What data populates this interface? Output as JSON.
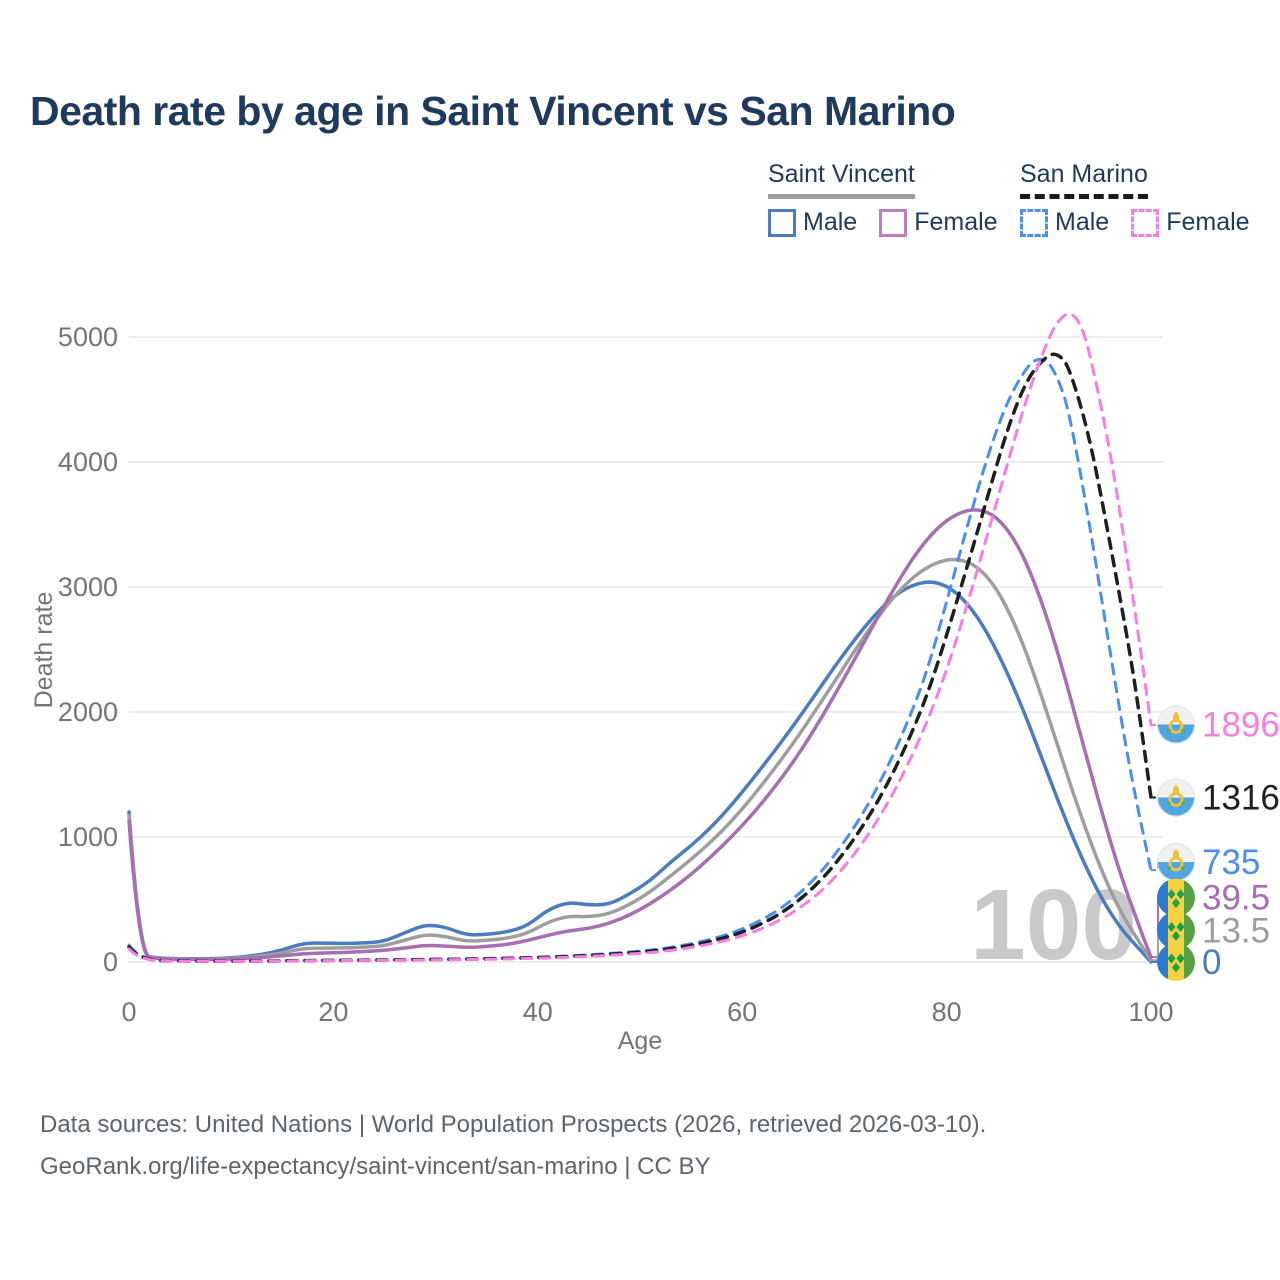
{
  "title": "Death rate by age in Saint Vincent vs San Marino",
  "watermark": "100",
  "legend": {
    "groups": [
      {
        "name": "Saint Vincent",
        "underline_style": "solid",
        "underline_color": "#9e9e9e",
        "items": [
          {
            "label": "Male",
            "color": "#4a7cc2",
            "dashed": false
          },
          {
            "label": "Female",
            "color": "#bb7ec0",
            "dashed": false
          }
        ]
      },
      {
        "name": "San Marino",
        "underline_style": "dashed",
        "underline_color": "#1a1a1a",
        "items": [
          {
            "label": "Male",
            "color": "#4a8df5",
            "dashed": true
          },
          {
            "label": "Female",
            "color": "#f97ce5",
            "dashed": true
          }
        ]
      }
    ]
  },
  "footer": {
    "line1": "Data sources: United Nations | World Population Prospects (2026, retrieved 2026-03-10).",
    "line2": "GeoRank.org/life-expectancy/saint-vincent/san-marino | CC BY"
  },
  "chart_data": {
    "type": "line",
    "title": "Death rate by age in Saint Vincent vs San Marino",
    "xlabel": "Age",
    "ylabel": "Death rate",
    "xlim": [
      0,
      100
    ],
    "ylim": [
      0,
      5200
    ],
    "xticks": [
      0,
      20,
      40,
      60,
      80,
      100
    ],
    "yticks": [
      0,
      1000,
      2000,
      3000,
      4000,
      5000
    ],
    "grid": "horizontal",
    "legend_position": "top-right",
    "axis_color": "#757575",
    "grid_color": "#e8e8e8",
    "watermark_color": "#c9c9c9",
    "series": [
      {
        "name": "Saint Vincent Male",
        "color": "#4a7cc2",
        "dash": false,
        "width": 3.5,
        "end_label": {
          "text": "0",
          "value": 0,
          "label_value": 0,
          "flag": "sv"
        },
        "points": [
          [
            0,
            1200
          ],
          [
            1,
            55
          ],
          [
            3,
            30
          ],
          [
            6,
            25
          ],
          [
            10,
            30
          ],
          [
            13,
            60
          ],
          [
            15,
            95
          ],
          [
            17,
            150
          ],
          [
            19,
            152
          ],
          [
            21,
            148
          ],
          [
            23,
            152
          ],
          [
            25,
            165
          ],
          [
            27,
            235
          ],
          [
            29,
            300
          ],
          [
            31,
            280
          ],
          [
            33,
            215
          ],
          [
            35,
            220
          ],
          [
            37,
            240
          ],
          [
            39,
            290
          ],
          [
            41,
            420
          ],
          [
            43,
            480
          ],
          [
            45,
            455
          ],
          [
            47,
            460
          ],
          [
            49,
            545
          ],
          [
            51,
            650
          ],
          [
            53,
            800
          ],
          [
            55,
            930
          ],
          [
            57,
            1080
          ],
          [
            59,
            1260
          ],
          [
            61,
            1460
          ],
          [
            63,
            1670
          ],
          [
            65,
            1890
          ],
          [
            67,
            2120
          ],
          [
            69,
            2360
          ],
          [
            71,
            2580
          ],
          [
            73,
            2780
          ],
          [
            75,
            2940
          ],
          [
            77,
            3030
          ],
          [
            79,
            3045
          ],
          [
            81,
            2960
          ],
          [
            83,
            2770
          ],
          [
            85,
            2480
          ],
          [
            87,
            2120
          ],
          [
            89,
            1700
          ],
          [
            91,
            1270
          ],
          [
            93,
            870
          ],
          [
            95,
            530
          ],
          [
            97,
            270
          ],
          [
            99,
            90
          ],
          [
            100,
            0
          ]
        ]
      },
      {
        "name": "Saint Vincent Both sexes",
        "color": "#9e9e9e",
        "dash": false,
        "width": 3.5,
        "end_label": {
          "text": "13.5",
          "value": 13.5,
          "label_value": 252,
          "flag": "sv"
        },
        "points": [
          [
            0,
            1170
          ],
          [
            1,
            50
          ],
          [
            3,
            27
          ],
          [
            6,
            22
          ],
          [
            10,
            26
          ],
          [
            13,
            48
          ],
          [
            15,
            72
          ],
          [
            17,
            108
          ],
          [
            19,
            112
          ],
          [
            21,
            112
          ],
          [
            23,
            118
          ],
          [
            25,
            130
          ],
          [
            27,
            175
          ],
          [
            29,
            220
          ],
          [
            31,
            205
          ],
          [
            33,
            165
          ],
          [
            35,
            172
          ],
          [
            37,
            190
          ],
          [
            39,
            230
          ],
          [
            41,
            320
          ],
          [
            43,
            368
          ],
          [
            45,
            360
          ],
          [
            47,
            385
          ],
          [
            49,
            460
          ],
          [
            51,
            560
          ],
          [
            53,
            690
          ],
          [
            55,
            820
          ],
          [
            57,
            965
          ],
          [
            59,
            1130
          ],
          [
            61,
            1320
          ],
          [
            63,
            1530
          ],
          [
            65,
            1750
          ],
          [
            67,
            1990
          ],
          [
            69,
            2240
          ],
          [
            71,
            2490
          ],
          [
            73,
            2730
          ],
          [
            75,
            2940
          ],
          [
            77,
            3100
          ],
          [
            79,
            3200
          ],
          [
            81,
            3230
          ],
          [
            83,
            3170
          ],
          [
            85,
            2980
          ],
          [
            87,
            2650
          ],
          [
            89,
            2200
          ],
          [
            91,
            1700
          ],
          [
            93,
            1200
          ],
          [
            95,
            760
          ],
          [
            97,
            400
          ],
          [
            99,
            140
          ],
          [
            100,
            13.5
          ]
        ]
      },
      {
        "name": "Saint Vincent Female",
        "color": "#a86db3",
        "dash": false,
        "width": 3.5,
        "end_label": {
          "text": "39.5",
          "value": 39.5,
          "label_value": 515,
          "flag": "sv"
        },
        "points": [
          [
            0,
            1130
          ],
          [
            1,
            45
          ],
          [
            3,
            24
          ],
          [
            6,
            20
          ],
          [
            10,
            22
          ],
          [
            13,
            36
          ],
          [
            15,
            50
          ],
          [
            17,
            66
          ],
          [
            19,
            72
          ],
          [
            21,
            76
          ],
          [
            23,
            84
          ],
          [
            25,
            94
          ],
          [
            27,
            112
          ],
          [
            29,
            135
          ],
          [
            31,
            128
          ],
          [
            33,
            115
          ],
          [
            35,
            124
          ],
          [
            37,
            140
          ],
          [
            39,
            172
          ],
          [
            41,
            215
          ],
          [
            43,
            250
          ],
          [
            45,
            268
          ],
          [
            47,
            310
          ],
          [
            49,
            375
          ],
          [
            51,
            465
          ],
          [
            53,
            575
          ],
          [
            55,
            700
          ],
          [
            57,
            845
          ],
          [
            59,
            1005
          ],
          [
            61,
            1180
          ],
          [
            63,
            1380
          ],
          [
            65,
            1600
          ],
          [
            67,
            1850
          ],
          [
            69,
            2130
          ],
          [
            71,
            2420
          ],
          [
            73,
            2720
          ],
          [
            75,
            3010
          ],
          [
            77,
            3270
          ],
          [
            79,
            3470
          ],
          [
            81,
            3590
          ],
          [
            83,
            3630
          ],
          [
            85,
            3560
          ],
          [
            87,
            3340
          ],
          [
            89,
            2960
          ],
          [
            91,
            2450
          ],
          [
            93,
            1850
          ],
          [
            95,
            1250
          ],
          [
            97,
            700
          ],
          [
            99,
            250
          ],
          [
            100,
            39.5
          ]
        ]
      },
      {
        "name": "San Marino Male",
        "color": "#4a8df5",
        "dash": true,
        "width": 3,
        "end_label": {
          "text": "735",
          "value": 735,
          "label_value": 800,
          "flag": "sm"
        },
        "points": [
          [
            0,
            135
          ],
          [
            1,
            20
          ],
          [
            5,
            8
          ],
          [
            10,
            8
          ],
          [
            15,
            10
          ],
          [
            20,
            14
          ],
          [
            25,
            18
          ],
          [
            30,
            22
          ],
          [
            35,
            28
          ],
          [
            40,
            38
          ],
          [
            45,
            56
          ],
          [
            50,
            86
          ],
          [
            52,
            105
          ],
          [
            54,
            130
          ],
          [
            56,
            163
          ],
          [
            58,
            205
          ],
          [
            60,
            262
          ],
          [
            62,
            340
          ],
          [
            64,
            440
          ],
          [
            66,
            575
          ],
          [
            68,
            745
          ],
          [
            70,
            960
          ],
          [
            72,
            1210
          ],
          [
            74,
            1520
          ],
          [
            76,
            1880
          ],
          [
            78,
            2300
          ],
          [
            80,
            2880
          ],
          [
            82,
            3480
          ],
          [
            84,
            4050
          ],
          [
            86,
            4500
          ],
          [
            88,
            4780
          ],
          [
            89,
            4830
          ],
          [
            90,
            4800
          ],
          [
            91,
            4650
          ],
          [
            92,
            4400
          ],
          [
            94,
            3500
          ],
          [
            96,
            2480
          ],
          [
            98,
            1500
          ],
          [
            100,
            735
          ]
        ]
      },
      {
        "name": "San Marino Both sexes",
        "color": "#1f1f1f",
        "dash": true,
        "width": 3.5,
        "end_label": {
          "text": "1316",
          "value": 1316,
          "label_value": 1316,
          "flag": "sm"
        },
        "points": [
          [
            0,
            120
          ],
          [
            1,
            18
          ],
          [
            5,
            7
          ],
          [
            10,
            7
          ],
          [
            15,
            9
          ],
          [
            20,
            13
          ],
          [
            25,
            16
          ],
          [
            30,
            20
          ],
          [
            35,
            25
          ],
          [
            40,
            34
          ],
          [
            45,
            50
          ],
          [
            50,
            78
          ],
          [
            52,
            95
          ],
          [
            54,
            118
          ],
          [
            56,
            148
          ],
          [
            58,
            187
          ],
          [
            60,
            238
          ],
          [
            62,
            308
          ],
          [
            64,
            400
          ],
          [
            66,
            522
          ],
          [
            68,
            678
          ],
          [
            70,
            875
          ],
          [
            72,
            1110
          ],
          [
            74,
            1390
          ],
          [
            76,
            1720
          ],
          [
            78,
            2110
          ],
          [
            80,
            2610
          ],
          [
            82,
            3160
          ],
          [
            84,
            3720
          ],
          [
            86,
            4280
          ],
          [
            88,
            4690
          ],
          [
            90,
            4865
          ],
          [
            91,
            4860
          ],
          [
            92,
            4760
          ],
          [
            94,
            4200
          ],
          [
            96,
            3350
          ],
          [
            98,
            2450
          ],
          [
            99,
            1900
          ],
          [
            100,
            1316
          ]
        ]
      },
      {
        "name": "San Marino Female",
        "color": "#f97ce5",
        "dash": true,
        "width": 3,
        "end_label": {
          "text": "1896",
          "value": 1896,
          "label_value": 1900,
          "flag": "sm"
        },
        "points": [
          [
            0,
            105
          ],
          [
            1,
            16
          ],
          [
            5,
            6
          ],
          [
            10,
            6
          ],
          [
            15,
            8
          ],
          [
            20,
            11
          ],
          [
            25,
            14
          ],
          [
            30,
            17
          ],
          [
            35,
            22
          ],
          [
            40,
            30
          ],
          [
            45,
            44
          ],
          [
            50,
            68
          ],
          [
            52,
            83
          ],
          [
            54,
            103
          ],
          [
            56,
            130
          ],
          [
            58,
            164
          ],
          [
            60,
            208
          ],
          [
            62,
            268
          ],
          [
            64,
            348
          ],
          [
            66,
            452
          ],
          [
            68,
            585
          ],
          [
            70,
            760
          ],
          [
            72,
            975
          ],
          [
            74,
            1235
          ],
          [
            76,
            1540
          ],
          [
            78,
            1900
          ],
          [
            80,
            2330
          ],
          [
            82,
            2850
          ],
          [
            84,
            3420
          ],
          [
            86,
            4000
          ],
          [
            88,
            4560
          ],
          [
            90,
            5000
          ],
          [
            91,
            5140
          ],
          [
            92,
            5200
          ],
          [
            93,
            5130
          ],
          [
            94,
            4880
          ],
          [
            96,
            4100
          ],
          [
            98,
            3050
          ],
          [
            99,
            2480
          ],
          [
            100,
            1896
          ]
        ]
      }
    ]
  }
}
